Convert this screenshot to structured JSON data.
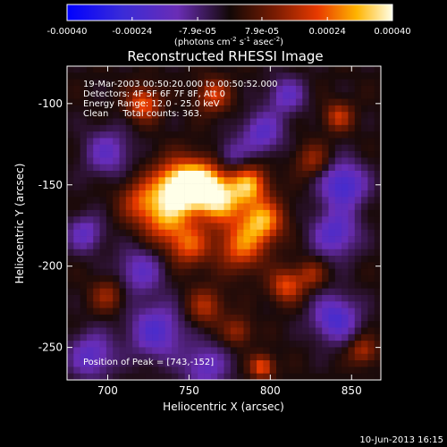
{
  "chart_data": {
    "type": "heatmap",
    "title": "Reconstructed RHESSI Image",
    "xlabel": "Heliocentric X (arcsec)",
    "ylabel": "Heliocentric Y (arcsec)",
    "xlim": [
      675,
      868
    ],
    "ylim": [
      -270,
      -77
    ],
    "x_ticks": [
      700,
      750,
      800,
      850
    ],
    "y_ticks": [
      -100,
      -150,
      -200,
      -250
    ],
    "colorbar": {
      "min": -0.0004,
      "max": 0.0004,
      "tick_values": [
        -0.0004,
        -0.00024,
        -7.9e-05,
        7.9e-05,
        0.00024,
        0.0004
      ],
      "tick_labels": [
        "-0.00040",
        "-0.00024",
        "-7.9e-05",
        "7.9e-05",
        "0.00024",
        "0.00040"
      ],
      "units_label": "(photons cm",
      "units_exp1": "-2",
      "units_mid": " s",
      "units_exp2": "-1",
      "units_mid2": " asec",
      "units_exp3": "-2",
      "units_end": ")"
    },
    "annotations": {
      "line1": "19-Mar-2003 00:50:20.000 to 00:50:52.000",
      "line2": "Detectors: 4F 5F 6F 7F 8F, Att 0",
      "line3": "Energy Range: 12.0 - 25.0 keV",
      "line4": "Clean     Total counts: 363.",
      "peak": "Position of Peak = [743,-152]"
    },
    "peak_position": [
      743,
      -152
    ],
    "date_stamp": "10-Jun-2013 16:15",
    "blobs": [
      {
        "x": 743,
        "y": -152,
        "a": 1.0,
        "s": 11
      },
      {
        "x": 758,
        "y": -150,
        "a": 0.8,
        "s": 10
      },
      {
        "x": 770,
        "y": -160,
        "a": 0.7,
        "s": 10
      },
      {
        "x": 787,
        "y": -150,
        "a": 0.7,
        "s": 8
      },
      {
        "x": 795,
        "y": -172,
        "a": 0.75,
        "s": 9
      },
      {
        "x": 782,
        "y": -188,
        "a": 0.6,
        "s": 10
      },
      {
        "x": 735,
        "y": -172,
        "a": 0.55,
        "s": 10
      },
      {
        "x": 750,
        "y": -187,
        "a": 0.55,
        "s": 9
      },
      {
        "x": 720,
        "y": -160,
        "a": 0.45,
        "s": 9
      },
      {
        "x": 722,
        "y": -100,
        "a": 0.6,
        "s": 7
      },
      {
        "x": 765,
        "y": -95,
        "a": 0.5,
        "s": 7
      },
      {
        "x": 842,
        "y": -108,
        "a": 0.45,
        "s": 6
      },
      {
        "x": 810,
        "y": -212,
        "a": 0.55,
        "s": 7
      },
      {
        "x": 825,
        "y": -205,
        "a": 0.35,
        "s": 6
      },
      {
        "x": 760,
        "y": -225,
        "a": 0.4,
        "s": 8
      },
      {
        "x": 700,
        "y": -218,
        "a": 0.35,
        "s": 7
      },
      {
        "x": 795,
        "y": -262,
        "a": 0.6,
        "s": 5
      },
      {
        "x": 780,
        "y": -240,
        "a": 0.35,
        "s": 6
      },
      {
        "x": 857,
        "y": -252,
        "a": 0.4,
        "s": 6
      },
      {
        "x": 826,
        "y": -135,
        "a": 0.35,
        "s": 7
      },
      {
        "x": 795,
        "y": -118,
        "a": -0.45,
        "s": 9
      },
      {
        "x": 700,
        "y": -130,
        "a": -0.4,
        "s": 10
      },
      {
        "x": 845,
        "y": -150,
        "a": -0.6,
        "s": 10
      },
      {
        "x": 840,
        "y": -180,
        "a": -0.5,
        "s": 10
      },
      {
        "x": 720,
        "y": -203,
        "a": -0.4,
        "s": 10
      },
      {
        "x": 730,
        "y": -240,
        "a": -0.5,
        "s": 12
      },
      {
        "x": 690,
        "y": -255,
        "a": -0.45,
        "s": 10
      },
      {
        "x": 840,
        "y": -232,
        "a": -0.55,
        "s": 10
      },
      {
        "x": 760,
        "y": -262,
        "a": -0.4,
        "s": 10
      },
      {
        "x": 810,
        "y": -95,
        "a": -0.4,
        "s": 8
      },
      {
        "x": 686,
        "y": -180,
        "a": -0.4,
        "s": 8
      },
      {
        "x": 776,
        "y": -132,
        "a": -0.3,
        "s": 7
      }
    ]
  }
}
